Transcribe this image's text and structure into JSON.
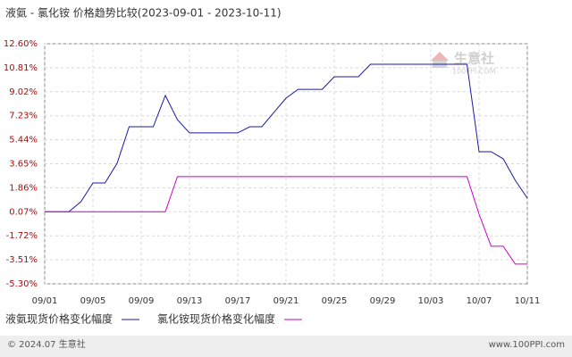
{
  "chart_data": {
    "type": "line",
    "title": "液氨 - 氯化铵 价格趋势比较(2023-09-01 - 2023-10-11)",
    "categories": [
      "09/01",
      null,
      null,
      null,
      "09/05",
      null,
      null,
      null,
      "09/09",
      null,
      null,
      null,
      "09/13",
      null,
      null,
      null,
      "09/17",
      null,
      null,
      null,
      "09/21",
      null,
      null,
      null,
      "09/25",
      null,
      null,
      null,
      "09/29",
      null,
      null,
      null,
      "10/03",
      null,
      null,
      null,
      "10/07",
      null,
      null,
      null,
      "10/11"
    ],
    "series": [
      {
        "name": "液氨现货价格变化幅度",
        "color": "#1a1aa6",
        "values": [
          0.07,
          0.07,
          0.07,
          0.82,
          2.22,
          2.22,
          3.68,
          6.41,
          6.41,
          6.41,
          8.74,
          6.94,
          5.95,
          5.95,
          5.95,
          5.95,
          5.95,
          6.41,
          6.41,
          7.48,
          8.54,
          9.2,
          9.2,
          9.2,
          10.14,
          10.14,
          10.14,
          11.07,
          11.07,
          11.07,
          11.07,
          11.07,
          11.07,
          11.07,
          11.07,
          11.07,
          4.55,
          4.55,
          4.02,
          2.42,
          1.09
        ]
      },
      {
        "name": "氯化铵现货价格变化幅度",
        "color": "#cc00cc",
        "values": [
          0.07,
          0.07,
          0.07,
          0.07,
          0.07,
          0.07,
          0.07,
          0.07,
          0.07,
          0.07,
          0.07,
          2.69,
          2.69,
          2.69,
          2.69,
          2.69,
          2.69,
          2.69,
          2.69,
          2.69,
          2.69,
          2.69,
          2.69,
          2.69,
          2.69,
          2.69,
          2.69,
          2.69,
          2.69,
          2.69,
          2.69,
          2.69,
          2.69,
          2.69,
          2.69,
          2.69,
          -0.11,
          -2.5,
          -2.5,
          -3.83,
          -3.83
        ]
      }
    ],
    "ylim": [
      -5.3,
      12.6
    ],
    "yticks": [
      {
        "value": -5.3,
        "label": "-5.30%"
      },
      {
        "value": -3.51,
        "label": "-3.51%"
      },
      {
        "value": -1.72,
        "label": "-1.72%"
      },
      {
        "value": 0.07,
        "label": "0.07%"
      },
      {
        "value": 1.86,
        "label": "1.86%"
      },
      {
        "value": 3.65,
        "label": "3.65%"
      },
      {
        "value": 5.44,
        "label": "5.44%"
      },
      {
        "value": 7.23,
        "label": "7.23%"
      },
      {
        "value": 9.02,
        "label": "9.02%"
      },
      {
        "value": 10.81,
        "label": "10.81%"
      },
      {
        "value": 12.6,
        "label": "12.60%"
      }
    ],
    "grid": true,
    "watermark": {
      "name": "生意社",
      "site": "100PPI.COM"
    },
    "footer": {
      "left": "© 2024.07 生意社",
      "right": "www.100PPI.com"
    }
  }
}
